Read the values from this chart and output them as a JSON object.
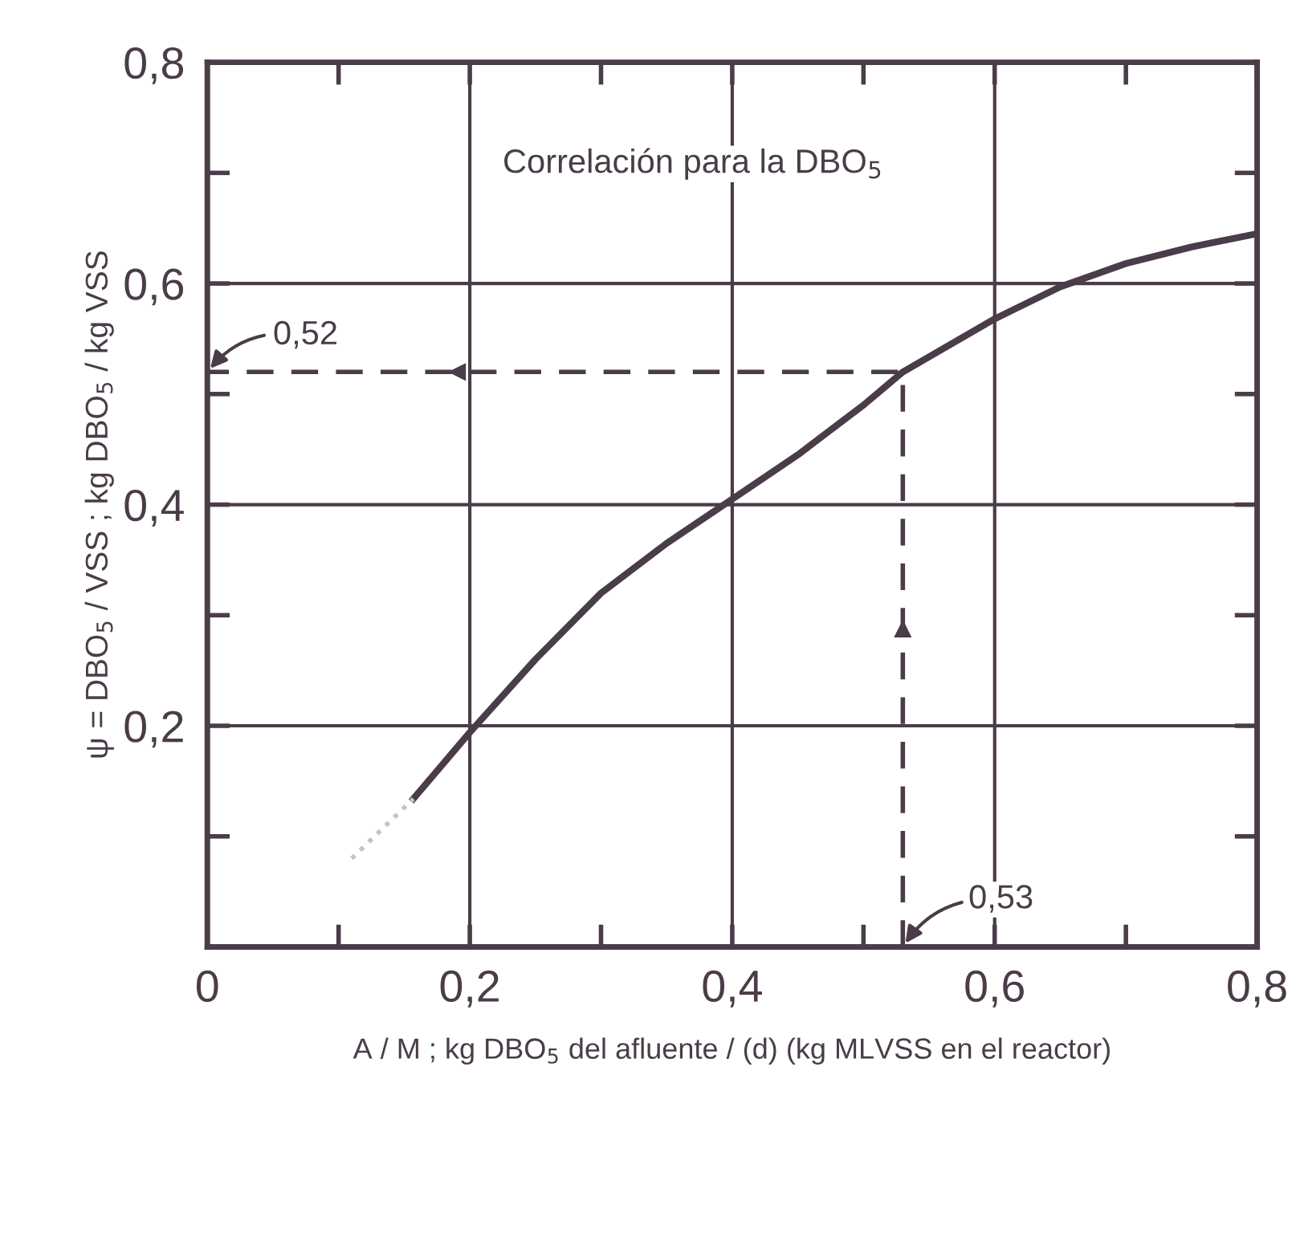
{
  "chart_data": {
    "type": "line",
    "xlabel": "A / M ; kg DBO$_{5}$ del afluente / (d) (kg MLVSS en el reactor)",
    "ylabel": "ψ = DBO$_{5}$ / VSS ; kg DBO$_{5}$ / kg VSS",
    "xlim": [
      0,
      0.8
    ],
    "ylim": [
      0,
      0.8
    ],
    "xticks": [
      {
        "value": 0,
        "label": "0"
      },
      {
        "value": 0.1,
        "label": null
      },
      {
        "value": 0.2,
        "label": "0,2"
      },
      {
        "value": 0.3,
        "label": null
      },
      {
        "value": 0.4,
        "label": "0,4"
      },
      {
        "value": 0.5,
        "label": null
      },
      {
        "value": 0.6,
        "label": "0,6"
      },
      {
        "value": 0.7,
        "label": null
      },
      {
        "value": 0.8,
        "label": "0,8"
      }
    ],
    "yticks": [
      {
        "value": 0.1,
        "label": null
      },
      {
        "value": 0.2,
        "label": "0,2"
      },
      {
        "value": 0.3,
        "label": null
      },
      {
        "value": 0.4,
        "label": "0,4"
      },
      {
        "value": 0.5,
        "label": null
      },
      {
        "value": 0.6,
        "label": "0,6"
      },
      {
        "value": 0.7,
        "label": null
      },
      {
        "value": 0.8,
        "label": "0,8"
      }
    ],
    "grid": true,
    "series": [
      {
        "color": "#4a3c48",
        "line_style": "solid",
        "x": [
          0.157,
          0.2,
          0.25,
          0.3,
          0.35,
          0.4,
          0.45,
          0.5,
          0.53,
          0.6,
          0.65,
          0.7,
          0.75,
          0.8
        ],
        "values": [
          0.134,
          0.194,
          0.26,
          0.32,
          0.365,
          0.405,
          0.445,
          0.49,
          0.52,
          0.568,
          0.597,
          0.618,
          0.633,
          0.645
        ]
      },
      {
        "color": "#c8c0c6",
        "line_style": "dotted",
        "x": [
          0.11,
          0.157
        ],
        "values": [
          0.08,
          0.134
        ]
      },
      {
        "color": "#4a3c48",
        "line_style": "dashed",
        "x": [
          0.53,
          0.53,
          0
        ],
        "values": [
          0,
          0.52,
          0.52
        ]
      }
    ],
    "annotations": [
      "Correlación para la DBO$_{5}$",
      {
        "text": "0,52",
        "x": 0,
        "y": 0.52
      },
      {
        "text": "0,53",
        "x": 0.53,
        "y": 0
      }
    ]
  }
}
